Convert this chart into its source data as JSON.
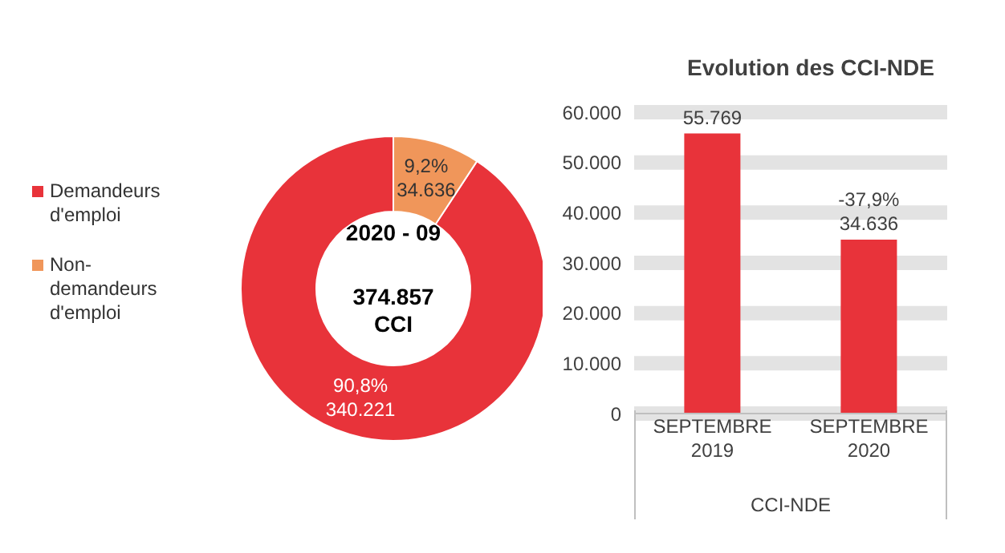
{
  "chart_data": [
    {
      "type": "donut",
      "categories": [
        "Demandeurs d'emploi",
        "Non-demandeurs d'emploi"
      ],
      "values": [
        340221,
        34636
      ],
      "colors": [
        "#e8333a",
        "#f0965a"
      ],
      "value_labels": [
        "90,8%\n340.221",
        "9,2%\n34.636"
      ],
      "annotations": [
        "2020 - 09",
        "374.857\nCCI"
      ],
      "legend": "left"
    },
    {
      "type": "bar",
      "title": "Evolution des CCI-NDE",
      "categories": [
        "SEPTEMBRE 2019",
        "SEPTEMBRE 2020"
      ],
      "values": [
        55769,
        34636
      ],
      "color": "#e8333a",
      "value_labels": [
        "55.769",
        "-37,9%\n34.636"
      ],
      "xlabel": "CCI-NDE",
      "ylim": [
        0,
        60000
      ],
      "yticks": [
        0,
        {
          "value": 10000,
          "label": "10.000"
        },
        {
          "value": 20000,
          "label": "20.000"
        },
        {
          "value": 30000,
          "label": "30.000"
        },
        {
          "value": 40000,
          "label": "40.000"
        },
        {
          "value": 50000,
          "label": "50.000"
        },
        {
          "value": 60000,
          "label": "60.000"
        }
      ],
      "grid": "y"
    }
  ]
}
